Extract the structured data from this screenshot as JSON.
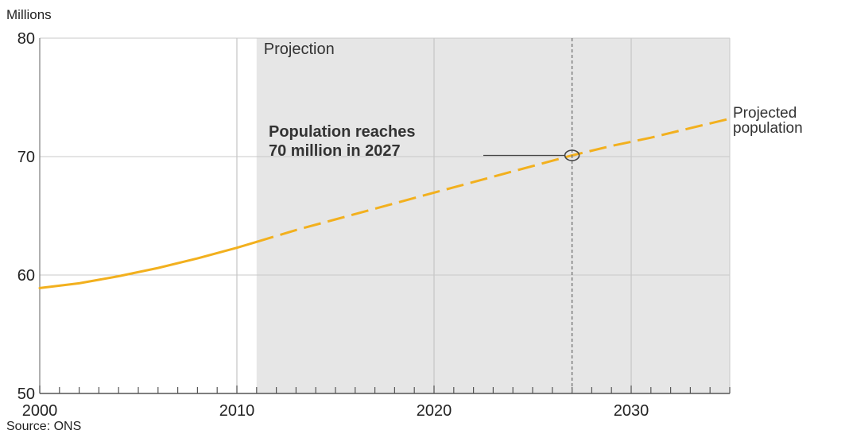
{
  "chart_data": {
    "type": "line",
    "unit_label": "Millions",
    "source": "Source: ONS",
    "xlim": [
      2000,
      2035
    ],
    "ylim": [
      50,
      80
    ],
    "x_ticks": [
      2000,
      2010,
      2020,
      2030
    ],
    "y_ticks": [
      50,
      60,
      70,
      80
    ],
    "grid": true,
    "projection_band": {
      "start": 2011,
      "end": 2035,
      "label": "Projection"
    },
    "series": [
      {
        "name": "Projected population",
        "name_lines": [
          "Projected",
          "population"
        ],
        "color": "#f2b01e",
        "actual_until": 2011,
        "x": [
          2000,
          2002,
          2004,
          2006,
          2008,
          2010,
          2011,
          2013,
          2015,
          2017,
          2019,
          2021,
          2023,
          2025,
          2027,
          2029,
          2031,
          2033,
          2035
        ],
        "y": [
          58.9,
          59.3,
          59.9,
          60.6,
          61.4,
          62.3,
          62.8,
          63.8,
          64.7,
          65.6,
          66.5,
          67.4,
          68.3,
          69.2,
          70.1,
          70.9,
          71.6,
          72.4,
          73.2
        ]
      }
    ],
    "annotation": {
      "lines": [
        "Population reaches",
        "70 million in 2027"
      ],
      "x": 2027,
      "y": 70.1
    }
  }
}
